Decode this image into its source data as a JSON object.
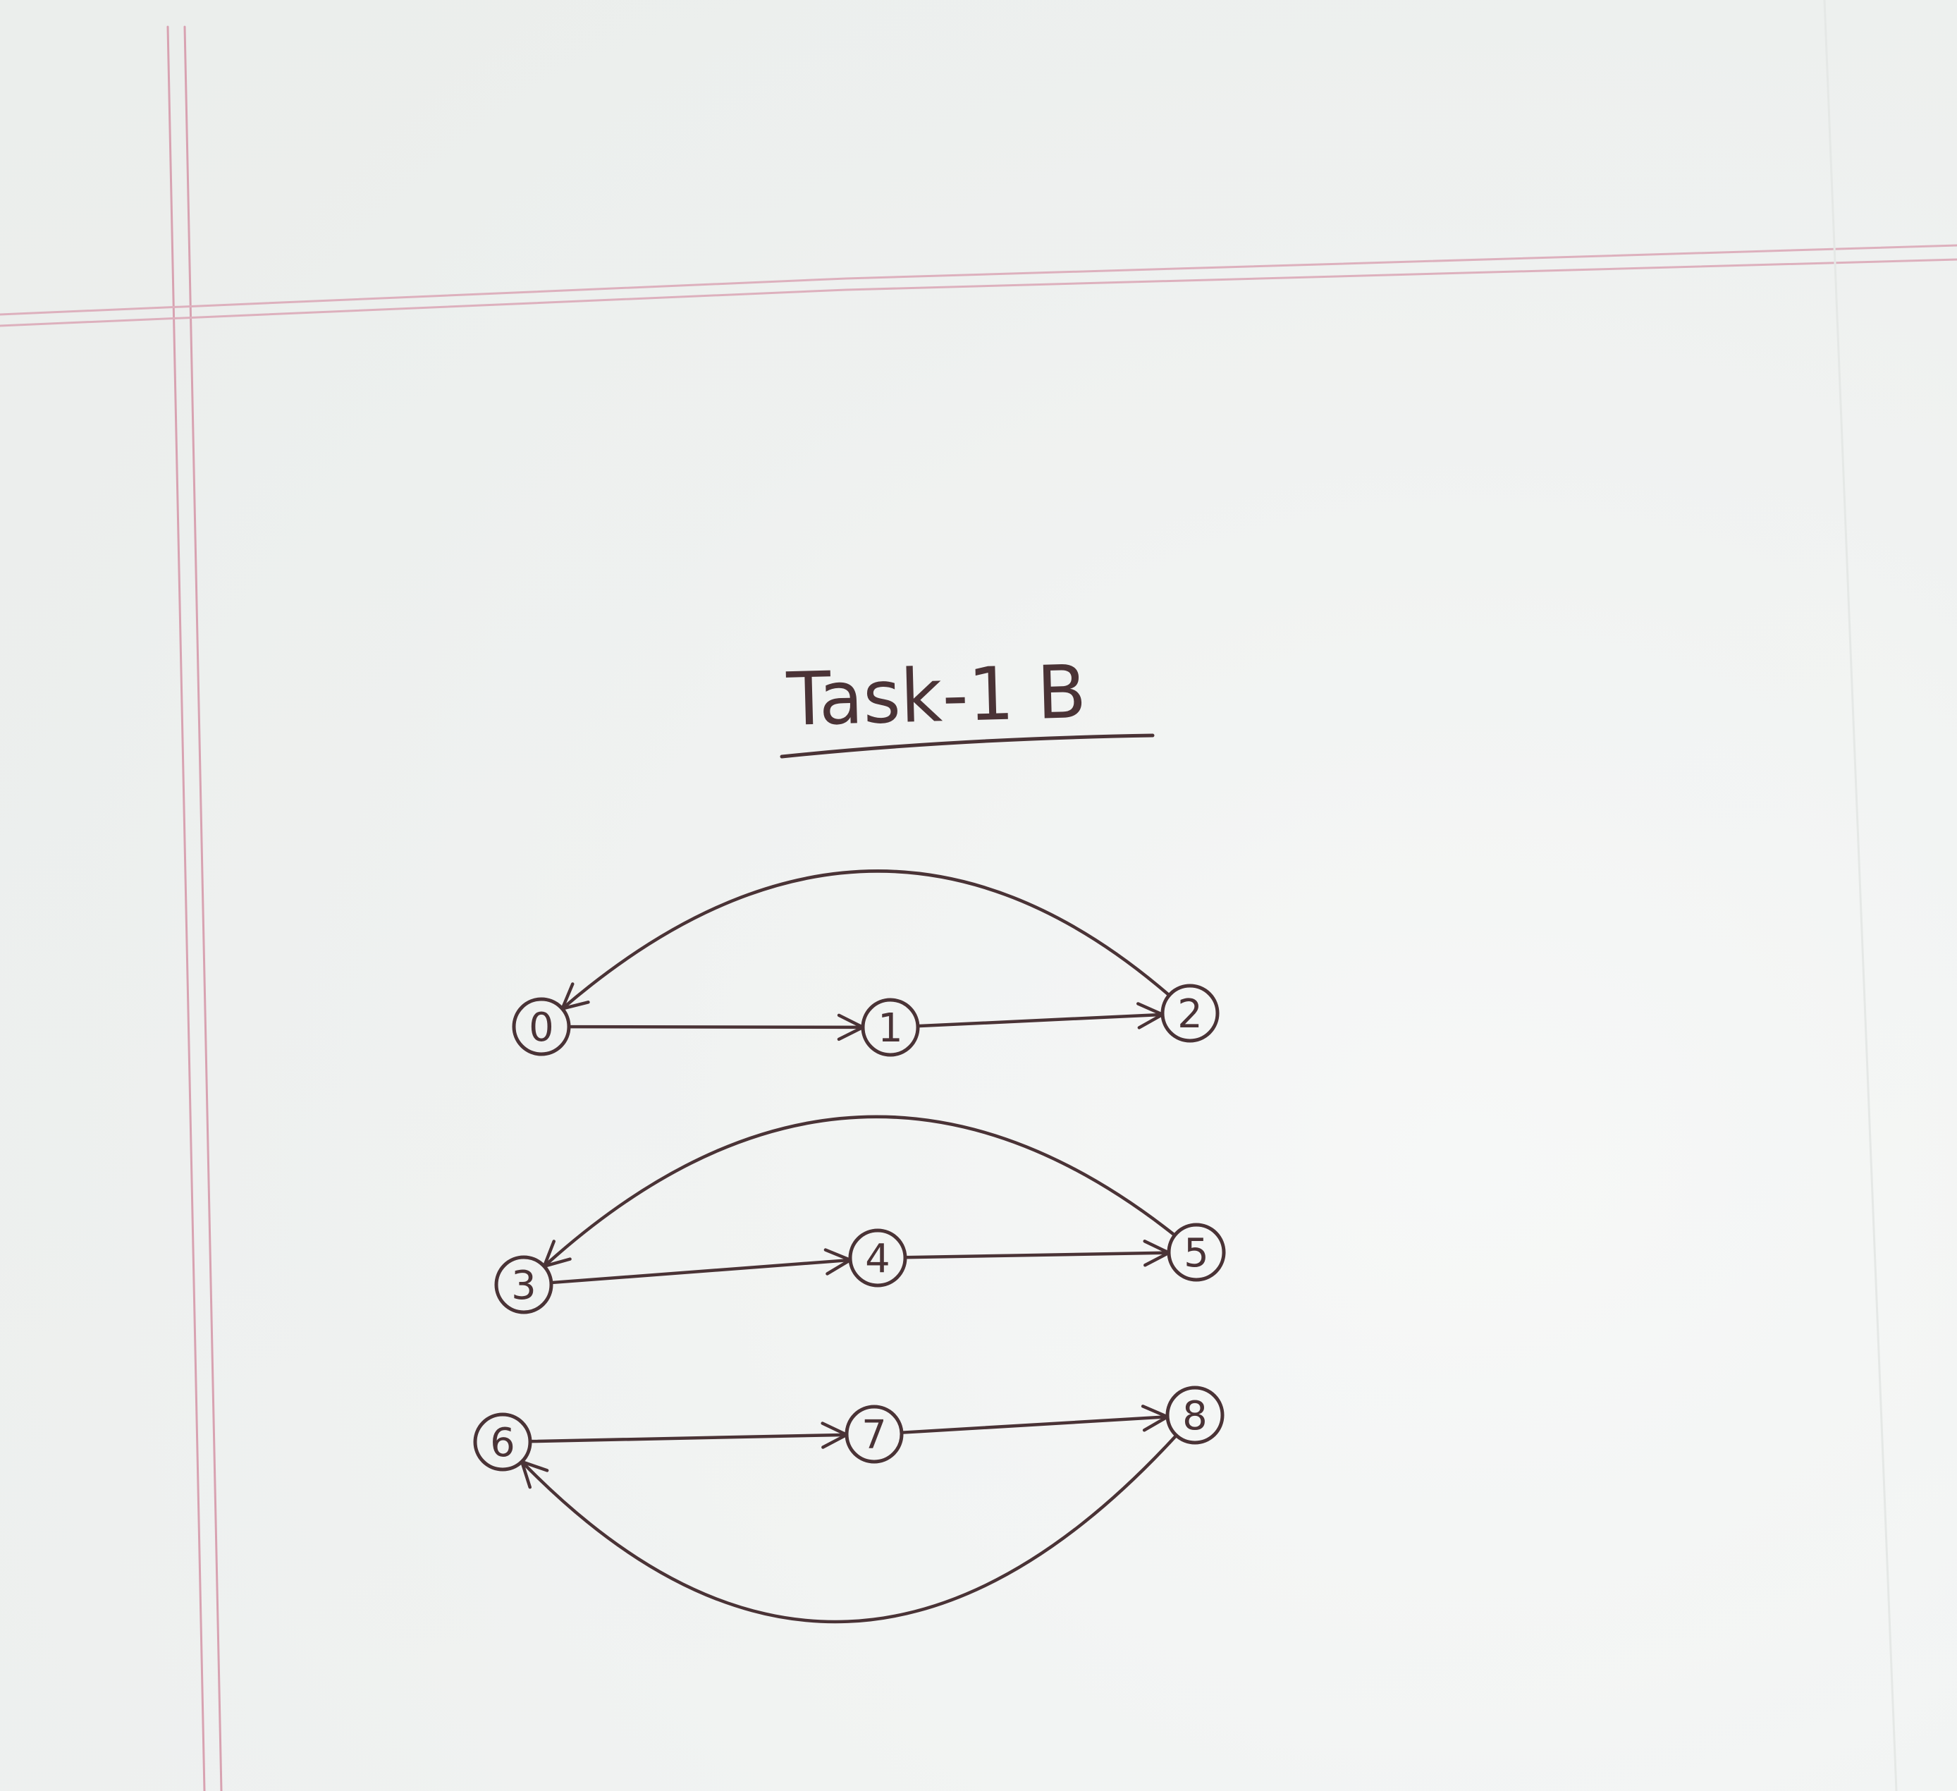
{
  "title": "Task-1 B",
  "colors": {
    "paper": "#f1f3f2",
    "ink": "#4a3336",
    "margin_rule": "#d8a2b1"
  },
  "graph": {
    "nodes": [
      "0",
      "1",
      "2",
      "3",
      "4",
      "5",
      "6",
      "7",
      "8"
    ],
    "edges": [
      [
        "0",
        "1"
      ],
      [
        "1",
        "2"
      ],
      [
        "2",
        "0"
      ],
      [
        "3",
        "4"
      ],
      [
        "4",
        "5"
      ],
      [
        "5",
        "3"
      ],
      [
        "6",
        "7"
      ],
      [
        "7",
        "8"
      ],
      [
        "8",
        "6"
      ]
    ]
  }
}
